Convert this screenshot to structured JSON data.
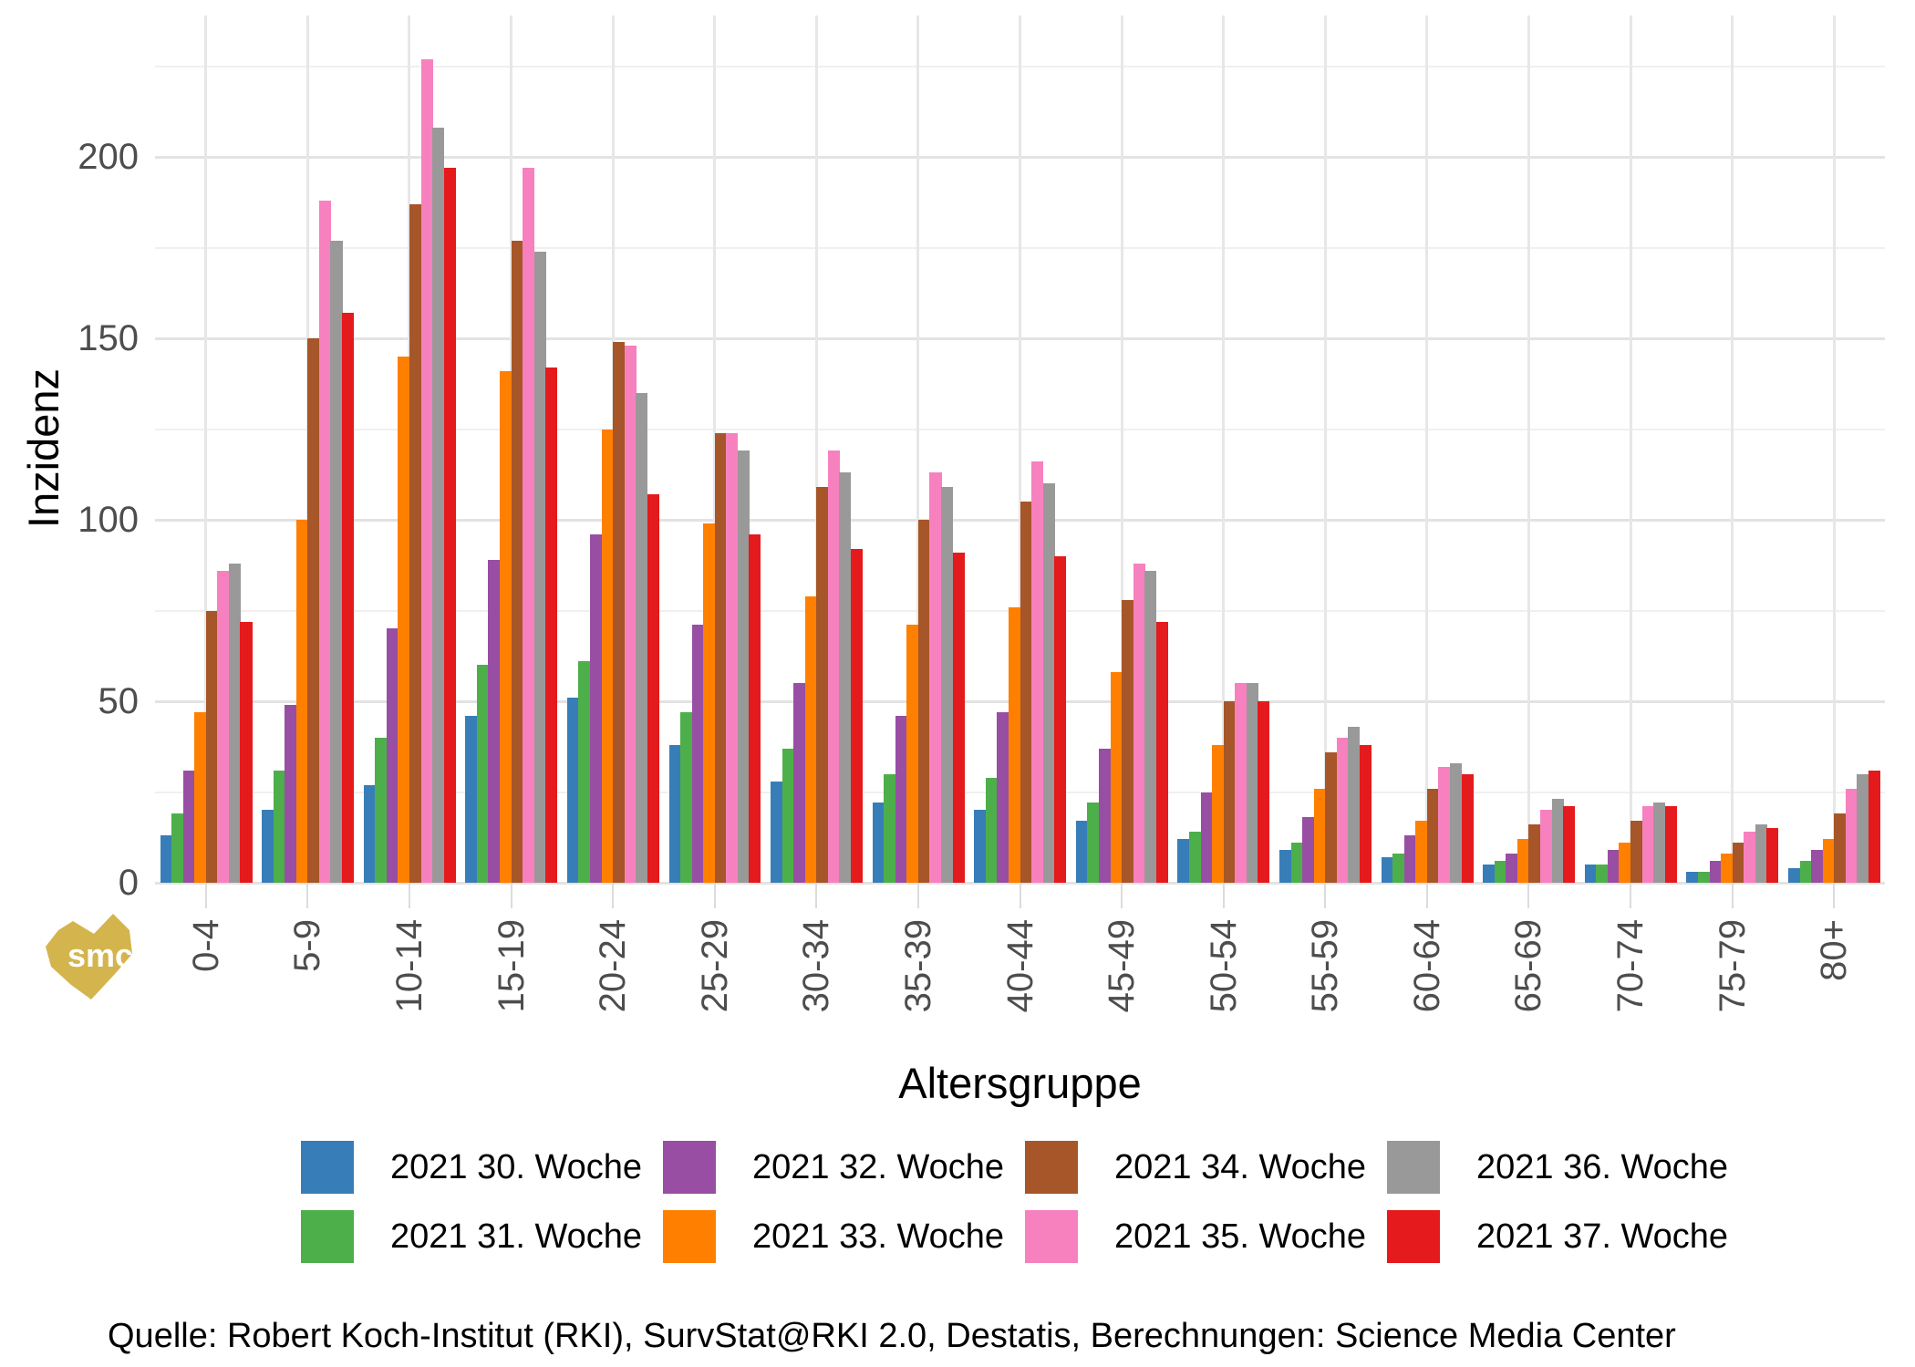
{
  "chart_data": {
    "type": "bar",
    "title": "",
    "xlabel": "Altersgruppe",
    "ylabel": "Inzidenz",
    "categories": [
      "0-4",
      "5-9",
      "10-14",
      "15-19",
      "20-24",
      "25-29",
      "30-34",
      "35-39",
      "40-44",
      "45-49",
      "50-54",
      "55-59",
      "60-64",
      "65-69",
      "70-74",
      "75-79",
      "80+"
    ],
    "series": [
      {
        "name": "2021 30. Woche",
        "color": "#377EB8",
        "values": [
          13,
          20,
          27,
          46,
          51,
          38,
          28,
          22,
          20,
          17,
          12,
          9,
          7,
          5,
          5,
          3,
          4
        ]
      },
      {
        "name": "2021 31. Woche",
        "color": "#4DAF4A",
        "values": [
          19,
          31,
          40,
          60,
          61,
          47,
          37,
          30,
          29,
          22,
          14,
          11,
          8,
          6,
          5,
          3,
          6
        ]
      },
      {
        "name": "2021 32. Woche",
        "color": "#984EA3",
        "values": [
          31,
          49,
          70,
          89,
          96,
          71,
          55,
          46,
          47,
          37,
          25,
          18,
          13,
          8,
          9,
          6,
          9
        ]
      },
      {
        "name": "2021 33. Woche",
        "color": "#FF7F00",
        "values": [
          47,
          100,
          145,
          141,
          125,
          99,
          79,
          71,
          76,
          58,
          38,
          26,
          17,
          12,
          11,
          8,
          12
        ]
      },
      {
        "name": "2021 34. Woche",
        "color": "#A65628",
        "values": [
          75,
          150,
          187,
          177,
          149,
          124,
          109,
          100,
          105,
          78,
          50,
          36,
          26,
          16,
          17,
          11,
          19
        ]
      },
      {
        "name": "2021 35. Woche",
        "color": "#F781BF",
        "values": [
          86,
          188,
          227,
          197,
          148,
          124,
          119,
          113,
          116,
          88,
          55,
          40,
          32,
          20,
          21,
          14,
          26
        ]
      },
      {
        "name": "2021 36. Woche",
        "color": "#999999",
        "values": [
          88,
          177,
          208,
          174,
          135,
          119,
          113,
          109,
          110,
          86,
          55,
          43,
          33,
          23,
          22,
          16,
          30
        ]
      },
      {
        "name": "2021 37. Woche",
        "color": "#E41A1C",
        "values": [
          72,
          157,
          197,
          142,
          107,
          96,
          92,
          91,
          90,
          72,
          50,
          38,
          30,
          21,
          21,
          15,
          31
        ]
      }
    ],
    "y_ticks": [
      0,
      50,
      100,
      150,
      200
    ],
    "y_minor_ticks": [
      25,
      75,
      125,
      175,
      225
    ],
    "ylim": [
      0,
      239
    ],
    "grid": "horizontal major+minor, vertical major at group centers",
    "legend_position": "bottom",
    "legend_rows": 2,
    "legend_order": "column-major"
  },
  "watermark": {
    "text": "smc",
    "color": "#D4B44C"
  },
  "source_line": "Quelle: Robert Koch-Institut (RKI), SurvStat@RKI 2.0, Destatis, Berechnungen: Science Media Center"
}
